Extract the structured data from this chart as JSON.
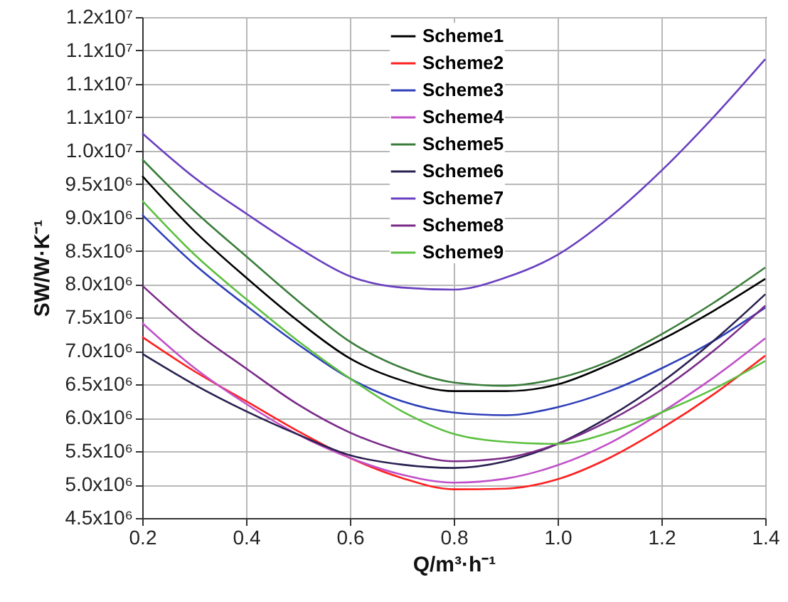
{
  "chart_data": {
    "type": "line",
    "xlabel": "Q/m³·h⁻¹",
    "ylabel": "SW/W·K⁻¹",
    "x": [
      0.2,
      0.3,
      0.4,
      0.5,
      0.6,
      0.7,
      0.8,
      0.9,
      1.0,
      1.1,
      1.2,
      1.3,
      1.4
    ],
    "series": [
      {
        "name": "Scheme1",
        "color": "#000000",
        "values": [
          9620000,
          8800000,
          8100000,
          7450000,
          6890000,
          6560000,
          6400000,
          6400000,
          6500000,
          6800000,
          7170000,
          7600000,
          8080000
        ]
      },
      {
        "name": "Scheme2",
        "color": "#ff2020",
        "values": [
          7210000,
          6700000,
          6250000,
          5800000,
          5400000,
          5100000,
          4930000,
          4940000,
          5080000,
          5400000,
          5840000,
          6350000,
          6930000
        ]
      },
      {
        "name": "Scheme3",
        "color": "#2e3fb8",
        "values": [
          9040000,
          8300000,
          7680000,
          7100000,
          6590000,
          6250000,
          6080000,
          6040000,
          6160000,
          6400000,
          6740000,
          7150000,
          7650000
        ]
      },
      {
        "name": "Scheme4",
        "color": "#c050c8",
        "values": [
          7420000,
          6750000,
          6210000,
          5750000,
          5400000,
          5150000,
          5030000,
          5090000,
          5290000,
          5620000,
          6080000,
          6600000,
          7190000
        ]
      },
      {
        "name": "Scheme5",
        "color": "#3a7d3a",
        "values": [
          9870000,
          9100000,
          8420000,
          7750000,
          7140000,
          6750000,
          6530000,
          6480000,
          6590000,
          6850000,
          7250000,
          7720000,
          8250000
        ]
      },
      {
        "name": "Scheme6",
        "color": "#2a2050",
        "values": [
          6960000,
          6500000,
          6100000,
          5750000,
          5440000,
          5300000,
          5250000,
          5350000,
          5610000,
          6020000,
          6530000,
          7150000,
          7850000
        ]
      },
      {
        "name": "Scheme7",
        "color": "#6a40c0",
        "values": [
          10260000,
          9600000,
          9060000,
          8550000,
          8120000,
          7950000,
          7920000,
          8100000,
          8440000,
          9000000,
          9700000,
          10500000,
          11370000
        ]
      },
      {
        "name": "Scheme8",
        "color": "#7a2a88",
        "values": [
          7980000,
          7300000,
          6740000,
          6200000,
          5780000,
          5500000,
          5350000,
          5400000,
          5610000,
          5960000,
          6420000,
          7000000,
          7680000
        ]
      },
      {
        "name": "Scheme9",
        "color": "#5cc040",
        "values": [
          9250000,
          8450000,
          7780000,
          7150000,
          6590000,
          6100000,
          5760000,
          5640000,
          5610000,
          5780000,
          6080000,
          6430000,
          6850000
        ]
      }
    ],
    "xlim": [
      0.2,
      1.4
    ],
    "xticks": [
      {
        "value": 0.2,
        "label": "0.2"
      },
      {
        "value": 0.4,
        "label": "0.4"
      },
      {
        "value": 0.6,
        "label": "0.6"
      },
      {
        "value": 0.8,
        "label": "0.8"
      },
      {
        "value": 1.0,
        "label": "1.0"
      },
      {
        "value": 1.2,
        "label": "1.2"
      },
      {
        "value": 1.4,
        "label": "1.4"
      }
    ],
    "ylim": [
      4500000,
      12000000
    ],
    "yticks": [
      {
        "value": 4500000,
        "label": "4.5x10⁶"
      },
      {
        "value": 5000000,
        "label": "5.0x10⁶"
      },
      {
        "value": 5500000,
        "label": "5.5x10⁶"
      },
      {
        "value": 6000000,
        "label": "6.0x10⁶"
      },
      {
        "value": 6500000,
        "label": "6.5x10⁶"
      },
      {
        "value": 7000000,
        "label": "7.0x10⁶"
      },
      {
        "value": 7500000,
        "label": "7.5x10⁶"
      },
      {
        "value": 8000000,
        "label": "8.0x10⁶"
      },
      {
        "value": 8500000,
        "label": "8.5x10⁶"
      },
      {
        "value": 9000000,
        "label": "9.0x10⁶"
      },
      {
        "value": 9500000,
        "label": "9.5x10⁶"
      },
      {
        "value": 10000000,
        "label": "1.0x10⁷"
      },
      {
        "value": 10500000,
        "label": "1.1x10⁷"
      },
      {
        "value": 11000000,
        "label": "1.1x10⁷"
      },
      {
        "value": 11500000,
        "label": "1.1x10⁷"
      },
      {
        "value": 12000000,
        "label": "1.2x10⁷"
      }
    ],
    "grid": true,
    "legend": "top",
    "line_style": "solid"
  }
}
